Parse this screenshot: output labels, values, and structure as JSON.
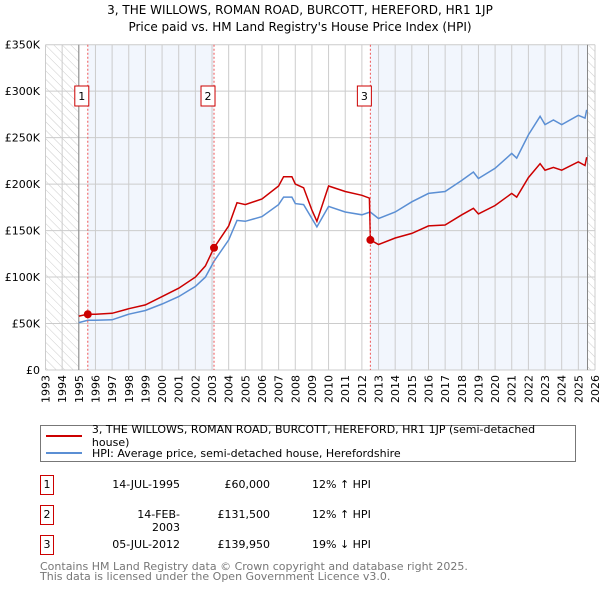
{
  "chart_data": {
    "type": "line",
    "title": "3, THE WILLOWS, ROMAN ROAD, BURCOTT, HEREFORD, HR1 1JP",
    "subtitle": "Price paid vs. HM Land Registry's House Price Index (HPI)",
    "xlim": [
      1993,
      2026
    ],
    "ylim": [
      0,
      350000
    ],
    "x_ticks": [
      "1993",
      "1994",
      "1995",
      "1996",
      "1997",
      "1998",
      "1999",
      "2000",
      "2001",
      "2002",
      "2003",
      "2004",
      "2005",
      "2006",
      "2007",
      "2008",
      "2009",
      "2010",
      "2011",
      "2012",
      "2013",
      "2014",
      "2015",
      "2016",
      "2017",
      "2018",
      "2019",
      "2020",
      "2021",
      "2022",
      "2023",
      "2024",
      "2025",
      "2026"
    ],
    "y_ticks": [
      {
        "v": 0,
        "label": "£0"
      },
      {
        "v": 50000,
        "label": "£50K"
      },
      {
        "v": 100000,
        "label": "£100K"
      },
      {
        "v": 150000,
        "label": "£150K"
      },
      {
        "v": 200000,
        "label": "£200K"
      },
      {
        "v": 250000,
        "label": "£250K"
      },
      {
        "v": 300000,
        "label": "£300K"
      },
      {
        "v": 350000,
        "label": "£350K"
      }
    ],
    "grid": true,
    "series": [
      {
        "name": "3, THE WILLOWS, ROMAN ROAD, BURCOTT, HEREFORD, HR1 1JP (semi-detached house)",
        "color": "#cc0000",
        "x": [
          1995.0,
          1995.54,
          1996,
          1997,
          1998,
          1999,
          2000,
          2001,
          2002,
          2002.6,
          2003.12,
          2004,
          2004.5,
          2005,
          2006,
          2007,
          2007.3,
          2007.8,
          2008,
          2008.5,
          2009,
          2009.3,
          2010,
          2011,
          2012,
          2012.45,
          2012.51,
          2013,
          2014,
          2015,
          2016,
          2017,
          2018,
          2018.7,
          2019,
          2020,
          2021,
          2021.3,
          2022,
          2022.7,
          2023,
          2023.5,
          2024,
          2025,
          2025.4,
          2025.5
        ],
        "y": [
          58000,
          60000,
          60000,
          61000,
          66000,
          70000,
          79000,
          88000,
          100000,
          112000,
          131500,
          155000,
          180000,
          178000,
          184000,
          198000,
          208000,
          208000,
          200000,
          196000,
          172000,
          160000,
          198000,
          192000,
          188000,
          185000,
          139950,
          135000,
          142000,
          147000,
          155000,
          156000,
          167000,
          174000,
          168000,
          177000,
          190000,
          186000,
          207000,
          222000,
          215000,
          218000,
          215000,
          224000,
          220000,
          229000
        ]
      },
      {
        "name": "HPI: Average price, semi-detached house, Herefordshire",
        "color": "#5b8fd4",
        "x": [
          1995.0,
          1995.54,
          1996,
          1997,
          1998,
          1999,
          2000,
          2001,
          2002,
          2002.6,
          2003.12,
          2004,
          2004.5,
          2005,
          2006,
          2007,
          2007.3,
          2007.8,
          2008,
          2008.5,
          2009,
          2009.3,
          2010,
          2011,
          2012,
          2012.5,
          2013,
          2014,
          2015,
          2016,
          2017,
          2018,
          2018.7,
          2019,
          2020,
          2021,
          2021.3,
          2022,
          2022.7,
          2023,
          2023.5,
          2024,
          2025,
          2025.4,
          2025.5
        ],
        "y": [
          51000,
          53500,
          53500,
          54000,
          60000,
          64000,
          71000,
          79000,
          90000,
          100000,
          117000,
          140000,
          161000,
          160000,
          165000,
          178000,
          186000,
          186000,
          179000,
          178000,
          163000,
          154000,
          176000,
          170000,
          167000,
          170000,
          163000,
          170000,
          181000,
          190000,
          192000,
          204000,
          213000,
          206000,
          217000,
          233000,
          228000,
          253000,
          273000,
          264000,
          269000,
          264000,
          274000,
          271000,
          280000
        ]
      }
    ],
    "sales": [
      {
        "id": "1",
        "x": 1995.54,
        "y": 60000,
        "date": "14-JUL-1995",
        "price": "£60,000",
        "hpi": "12% ↑ HPI"
      },
      {
        "id": "2",
        "x": 2003.12,
        "y": 131500,
        "date": "14-FEB-2003",
        "price": "£131,500",
        "hpi": "12% ↑ HPI"
      },
      {
        "id": "3",
        "x": 2012.51,
        "y": 139950,
        "date": "05-JUL-2012",
        "price": "£139,950",
        "hpi": "19% ↓ HPI"
      }
    ],
    "data_range": [
      1995,
      2025.55
    ]
  },
  "legend": {
    "property": "3, THE WILLOWS, ROMAN ROAD, BURCOTT, HEREFORD, HR1 1JP (semi-detached house)",
    "hpi": "HPI: Average price, semi-detached house, Herefordshire"
  },
  "footer": {
    "line1": "Contains HM Land Registry data © Crown copyright and database right 2025.",
    "line2": "This data is licensed under the Open Government Licence v3.0."
  }
}
